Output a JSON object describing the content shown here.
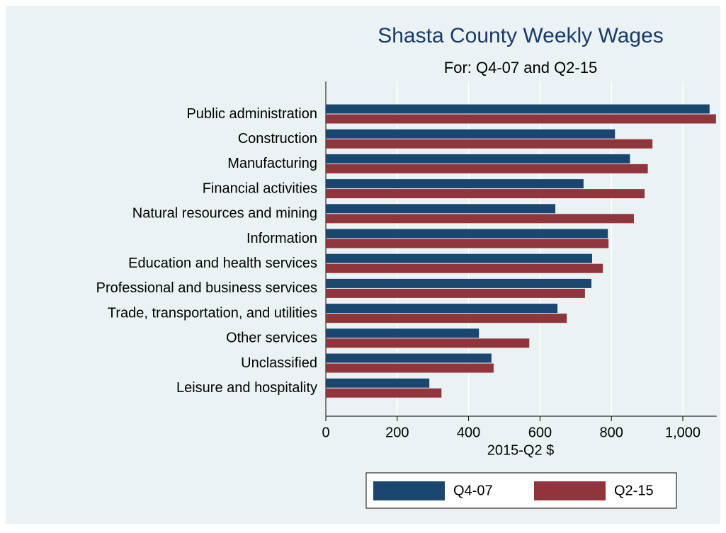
{
  "chart_data": {
    "type": "bar",
    "orientation": "horizontal",
    "title": "Shasta County Weekly Wages",
    "subtitle": "For: Q4-07 and Q2-15",
    "x_label": "2015-Q2 $",
    "categories": [
      "Public administration",
      "Construction",
      "Manufacturing",
      "Financial activities",
      "Natural resources and mining",
      "Information",
      "Education and health services",
      "Professional and business services",
      "Trade, transportation, and utilities",
      "Other services",
      "Unclassified",
      "Leisure and hospitality"
    ],
    "series": [
      {
        "name": "Q4-07",
        "color": "#1a476f",
        "values": [
          1075,
          810,
          852,
          722,
          643,
          790,
          746,
          744,
          649,
          429,
          464,
          290
        ]
      },
      {
        "name": "Q2-15",
        "color": "#90353b",
        "values": [
          1093,
          915,
          902,
          893,
          863,
          792,
          776,
          726,
          675,
          570,
          470,
          324
        ]
      }
    ],
    "xlim": [
      0,
      1095
    ],
    "xticks": [
      0,
      200,
      400,
      600,
      800,
      {
        "value": 1000,
        "label": "1,000"
      }
    ],
    "grid": true,
    "legend": "bottom"
  }
}
